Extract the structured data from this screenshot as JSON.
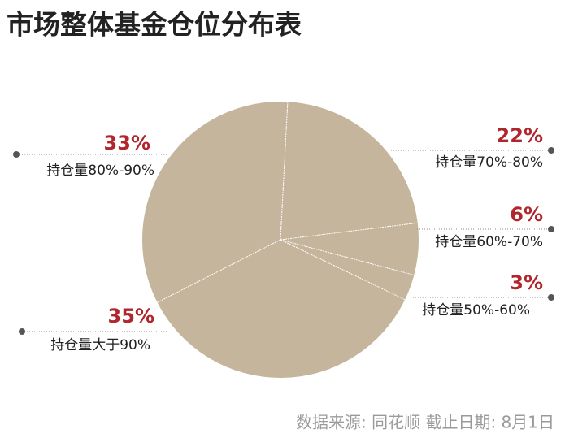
{
  "chart_data": {
    "type": "pie",
    "title": "市场整体基金仓位分布表",
    "categories": [
      "持仓量70%-80%",
      "持仓量60%-70%",
      "持仓量50%-60%",
      "持仓量大于90%",
      "持仓量80%-90%"
    ],
    "values": [
      22,
      6,
      3,
      35,
      33
    ],
    "value_labels": [
      "22%",
      "6%",
      "3%",
      "35%",
      "33%"
    ],
    "color": "#c4b59c",
    "source": "数据来源: 同花顺 截止日期: 8月1日"
  }
}
